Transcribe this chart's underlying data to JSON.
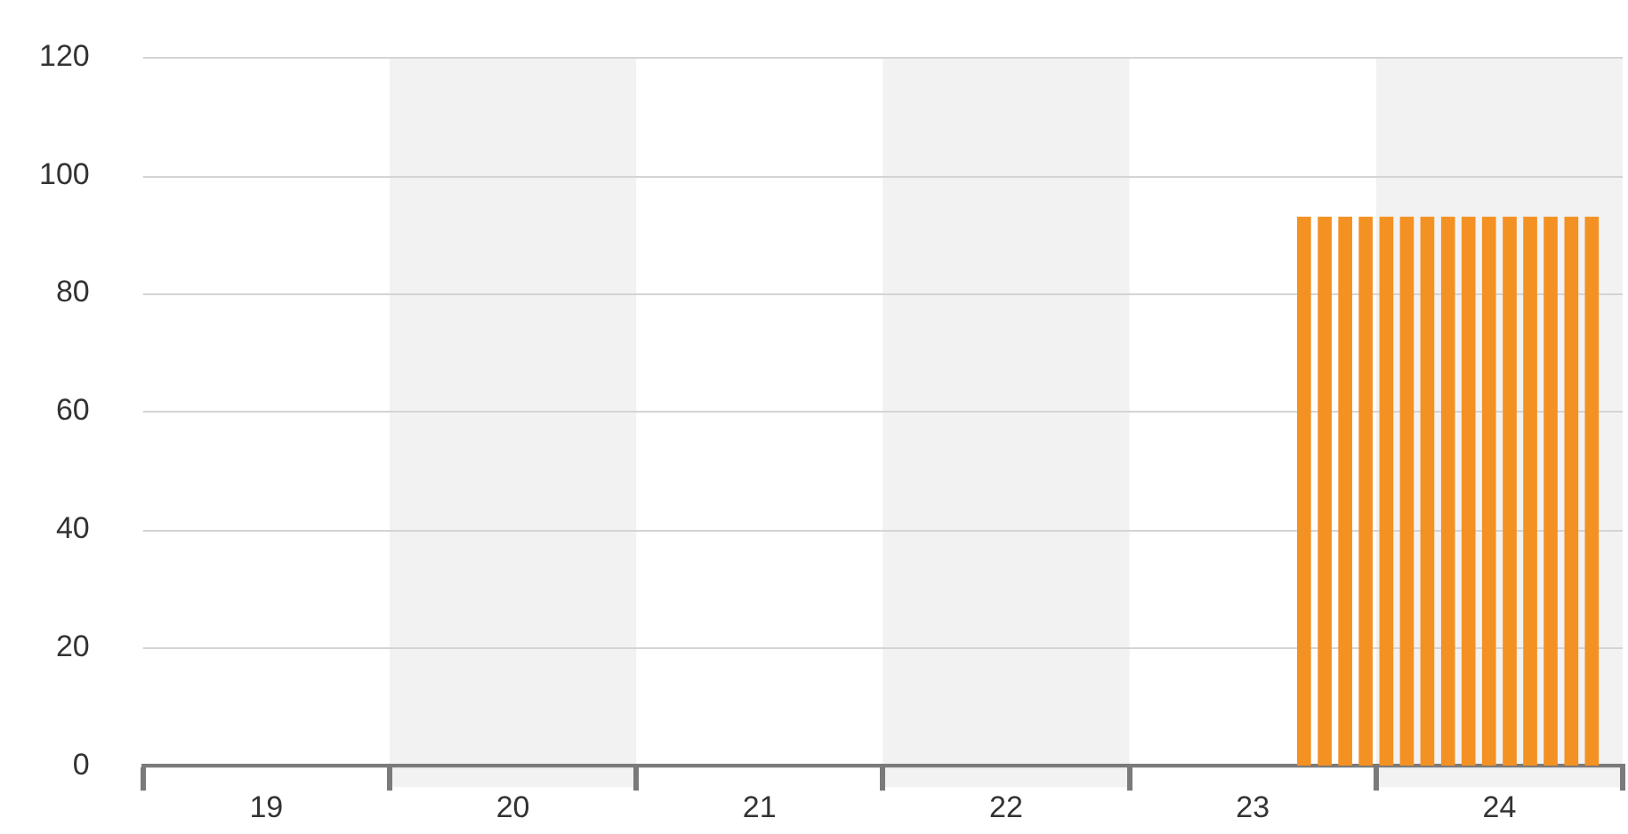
{
  "chart_data": {
    "type": "bar",
    "x": [
      23.208,
      23.292,
      23.375,
      23.458,
      23.542,
      23.625,
      23.708,
      23.792,
      23.875,
      23.958,
      24.042,
      24.125,
      24.208,
      24.292,
      24.375
    ],
    "values": [
      93,
      93,
      93,
      93,
      93,
      93,
      93,
      93,
      93,
      93,
      93,
      93,
      93,
      93,
      93
    ],
    "color": "#f39123",
    "xlim": [
      18.5,
      24.5
    ],
    "xticks": [
      {
        "value": 18.5,
        "label": null
      },
      19,
      {
        "value": 19.5,
        "label": null
      },
      20,
      {
        "value": 20.5,
        "label": null
      },
      21,
      {
        "value": 21.5,
        "label": null
      },
      22,
      {
        "value": 22.5,
        "label": null
      },
      23,
      {
        "value": 23.5,
        "label": null
      },
      24,
      {
        "value": 24.5,
        "label": null
      }
    ],
    "ylim": [
      0,
      120
    ],
    "yticks": [
      0,
      20,
      40,
      60,
      80,
      100,
      120
    ],
    "grid": "y",
    "bands": [
      {
        "axis": "x",
        "from": 19.5,
        "to": 20.5,
        "color": "#f2f2f2"
      },
      {
        "axis": "x",
        "from": 21.5,
        "to": 22.5,
        "color": "#f2f2f2"
      },
      {
        "axis": "x",
        "from": 23.5,
        "to": 24.5,
        "color": "#f2f2f2"
      }
    ],
    "legend": false
  }
}
